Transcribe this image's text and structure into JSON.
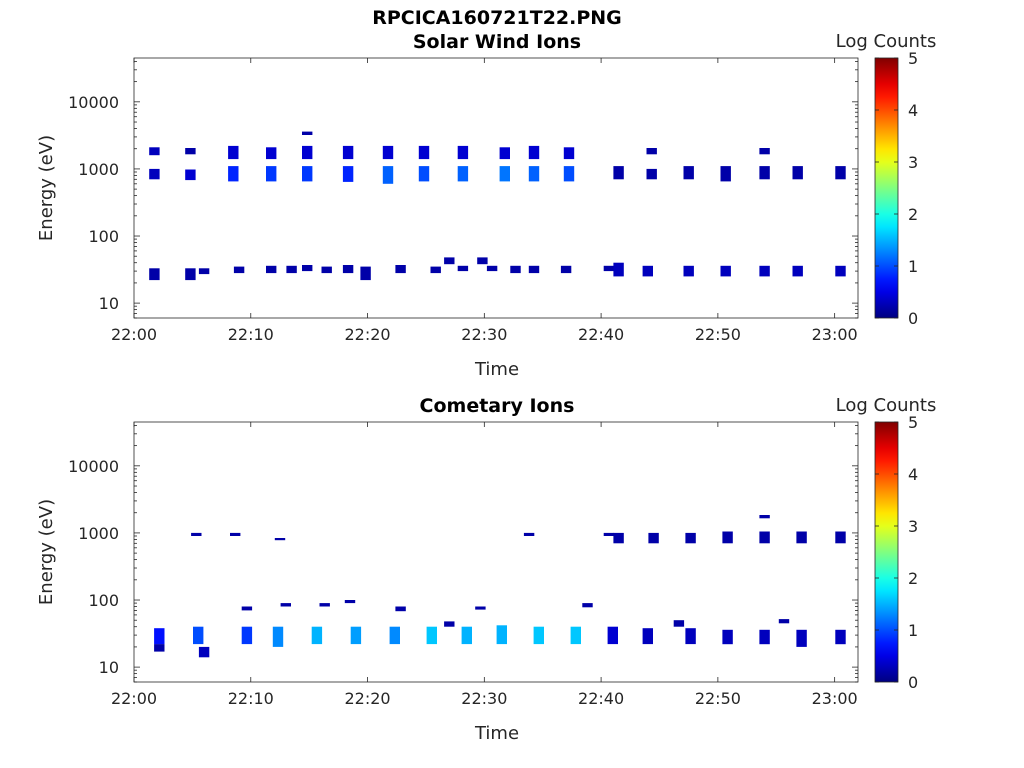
{
  "figure": {
    "title": "RPCICA160721T22.PNG"
  },
  "chart_data": [
    {
      "type": "heatmap",
      "title": "Solar Wind Ions",
      "xlabel": "Time",
      "ylabel": "Energy (eV)",
      "x_ticks": [
        "22:00",
        "22:10",
        "22:20",
        "22:30",
        "22:40",
        "22:50",
        "23:00"
      ],
      "xlim": [
        "22:00",
        "23:02"
      ],
      "y_scale": "log",
      "y_ticks": [
        "10",
        "100",
        "1000",
        "10000"
      ],
      "ylim": [
        6,
        45000
      ],
      "colorbar": {
        "label": "Log Counts",
        "range": [
          0,
          5
        ],
        "ticks": [
          "0",
          "1",
          "2",
          "3",
          "4",
          "5"
        ],
        "colormap": "jet"
      },
      "cells": [
        [
          "22:01:45",
          700,
          1000,
          0.3
        ],
        [
          "22:01:45",
          1600,
          2100,
          0.3
        ],
        [
          "22:01:45",
          22,
          33,
          0.2
        ],
        [
          "22:04:50",
          680,
          980,
          0.4
        ],
        [
          "22:04:50",
          1650,
          2050,
          0.2
        ],
        [
          "22:04:50",
          22,
          33,
          0.2
        ],
        [
          "22:06:00",
          27,
          33,
          0.2
        ],
        [
          "22:08:30",
          650,
          1100,
          0.8
        ],
        [
          "22:08:30",
          1400,
          2200,
          0.4
        ],
        [
          "22:09:00",
          28,
          35,
          0.2
        ],
        [
          "22:11:45",
          650,
          1100,
          0.9
        ],
        [
          "22:11:45",
          1400,
          2100,
          0.4
        ],
        [
          "22:11:45",
          28,
          36,
          0.2
        ],
        [
          "22:13:30",
          28,
          36,
          0.2
        ],
        [
          "22:14:50",
          3200,
          3600,
          0.2
        ],
        [
          "22:14:50",
          650,
          1100,
          0.9
        ],
        [
          "22:14:50",
          1400,
          2200,
          0.4
        ],
        [
          "22:14:50",
          30,
          37,
          0.2
        ],
        [
          "22:16:30",
          28,
          35,
          0.2
        ],
        [
          "22:18:20",
          640,
          1100,
          0.8
        ],
        [
          "22:18:20",
          1400,
          2200,
          0.4
        ],
        [
          "22:18:20",
          28,
          37,
          0.2
        ],
        [
          "22:19:50",
          22,
          35,
          0.2
        ],
        [
          "22:21:45",
          600,
          1100,
          1.1
        ],
        [
          "22:21:45",
          1400,
          2200,
          0.4
        ],
        [
          "22:22:50",
          28,
          37,
          0.2
        ],
        [
          "22:24:50",
          650,
          1100,
          1.0
        ],
        [
          "22:24:50",
          1400,
          2200,
          0.4
        ],
        [
          "22:25:50",
          28,
          35,
          0.2
        ],
        [
          "22:27:00",
          38,
          48,
          0.2
        ],
        [
          "22:28:10",
          30,
          36,
          0.2
        ],
        [
          "22:28:10",
          650,
          1100,
          1.1
        ],
        [
          "22:28:10",
          1400,
          2200,
          0.4
        ],
        [
          "22:29:50",
          38,
          48,
          0.2
        ],
        [
          "22:30:40",
          30,
          36,
          0.2
        ],
        [
          "22:31:45",
          650,
          1100,
          1.2
        ],
        [
          "22:31:45",
          1400,
          2100,
          0.4
        ],
        [
          "22:32:40",
          28,
          36,
          0.2
        ],
        [
          "22:34:15",
          28,
          36,
          0.2
        ],
        [
          "22:34:15",
          650,
          1100,
          1.1
        ],
        [
          "22:34:15",
          1400,
          2200,
          0.4
        ],
        [
          "22:37:15",
          650,
          1100,
          1.0
        ],
        [
          "22:37:15",
          1400,
          2100,
          0.4
        ],
        [
          "22:37:00",
          28,
          36,
          0.2
        ],
        [
          "22:40:40",
          30,
          36,
          0.2
        ],
        [
          "22:41:30",
          700,
          1100,
          0.2
        ],
        [
          "22:41:30",
          25,
          40,
          0.3
        ],
        [
          "22:44:20",
          700,
          1000,
          0.2
        ],
        [
          "22:44:20",
          1650,
          2050,
          0.2
        ],
        [
          "22:44:00",
          25,
          36,
          0.3
        ],
        [
          "22:47:30",
          700,
          1100,
          0.2
        ],
        [
          "22:47:30",
          25,
          36,
          0.3
        ],
        [
          "22:50:40",
          650,
          1100,
          0.2
        ],
        [
          "22:50:40",
          25,
          36,
          0.3
        ],
        [
          "22:54:00",
          700,
          1100,
          0.2
        ],
        [
          "22:54:00",
          1650,
          2050,
          0.2
        ],
        [
          "22:54:00",
          25,
          36,
          0.3
        ],
        [
          "22:56:50",
          700,
          1100,
          0.2
        ],
        [
          "22:56:50",
          25,
          36,
          0.3
        ],
        [
          "23:00:30",
          700,
          1100,
          0.2
        ],
        [
          "23:00:30",
          25,
          36,
          0.3
        ]
      ]
    },
    {
      "type": "heatmap",
      "title": "Cometary Ions",
      "xlabel": "Time",
      "ylabel": "Energy (eV)",
      "x_ticks": [
        "22:00",
        "22:10",
        "22:20",
        "22:30",
        "22:40",
        "22:50",
        "23:00"
      ],
      "xlim": [
        "22:00",
        "23:02"
      ],
      "y_scale": "log",
      "y_ticks": [
        "10",
        "100",
        "1000",
        "10000"
      ],
      "ylim": [
        6,
        45000
      ],
      "colorbar": {
        "label": "Log Counts",
        "range": [
          0,
          5
        ],
        "ticks": [
          "0",
          "1",
          "2",
          "3",
          "4",
          "5"
        ],
        "colormap": "jet"
      },
      "cells": [
        [
          "22:02:10",
          22,
          38,
          0.7
        ],
        [
          "22:02:10",
          17,
          22,
          0.2
        ],
        [
          "22:05:20",
          900,
          1000,
          0.2
        ],
        [
          "22:05:30",
          22,
          40,
          1.0
        ],
        [
          "22:06:00",
          14,
          20,
          0.3
        ],
        [
          "22:08:40",
          900,
          1000,
          0.2
        ],
        [
          "22:09:40",
          22,
          40,
          0.9
        ],
        [
          "22:09:40",
          70,
          80,
          0.2
        ],
        [
          "22:12:30",
          780,
          840,
          0.2
        ],
        [
          "22:12:20",
          20,
          40,
          1.3
        ],
        [
          "22:13:00",
          80,
          90,
          0.2
        ],
        [
          "22:15:40",
          22,
          40,
          1.5
        ],
        [
          "22:16:20",
          80,
          90,
          0.2
        ],
        [
          "22:18:30",
          90,
          100,
          0.2
        ],
        [
          "22:19:00",
          22,
          40,
          1.4
        ],
        [
          "22:22:20",
          22,
          40,
          1.3
        ],
        [
          "22:22:50",
          68,
          80,
          0.2
        ],
        [
          "22:25:30",
          22,
          40,
          1.6
        ],
        [
          "22:27:00",
          40,
          48,
          0.2
        ],
        [
          "22:28:30",
          22,
          40,
          1.5
        ],
        [
          "22:29:40",
          72,
          80,
          0.2
        ],
        [
          "22:31:30",
          22,
          42,
          1.5
        ],
        [
          "22:33:50",
          900,
          1000,
          0.2
        ],
        [
          "22:34:40",
          22,
          40,
          1.6
        ],
        [
          "22:37:50",
          22,
          40,
          1.6
        ],
        [
          "22:38:50",
          78,
          90,
          0.2
        ],
        [
          "22:40:40",
          900,
          1000,
          0.2
        ],
        [
          "22:41:30",
          700,
          1000,
          0.2
        ],
        [
          "22:41:00",
          22,
          40,
          0.4
        ],
        [
          "22:44:30",
          700,
          1000,
          0.2
        ],
        [
          "22:44:00",
          22,
          38,
          0.3
        ],
        [
          "22:46:40",
          40,
          50,
          0.2
        ],
        [
          "22:47:40",
          700,
          1000,
          0.2
        ],
        [
          "22:47:40",
          22,
          38,
          0.3
        ],
        [
          "22:50:50",
          700,
          1050,
          0.2
        ],
        [
          "22:50:50",
          22,
          36,
          0.3
        ],
        [
          "22:54:00",
          700,
          1050,
          0.2
        ],
        [
          "22:54:00",
          1650,
          1850,
          0.2
        ],
        [
          "22:54:00",
          22,
          36,
          0.3
        ],
        [
          "22:55:40",
          45,
          52,
          0.2
        ],
        [
          "22:57:10",
          700,
          1050,
          0.2
        ],
        [
          "22:57:10",
          20,
          36,
          0.3
        ],
        [
          "23:00:30",
          700,
          1050,
          0.2
        ],
        [
          "23:00:30",
          22,
          36,
          0.3
        ]
      ]
    }
  ]
}
